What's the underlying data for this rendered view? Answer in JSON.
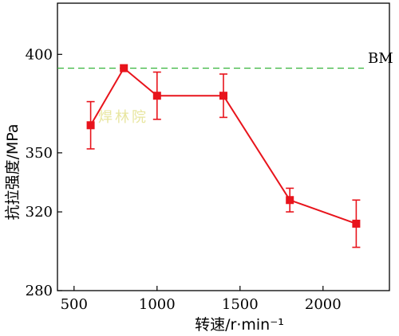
{
  "chart_data": {
    "type": "line",
    "xlabel": "转速/r·min⁻¹",
    "ylabel": "抗拉强度/MPa",
    "xlim": [
      400,
      2400
    ],
    "ylim": [
      280,
      426
    ],
    "x_ticks": [
      500,
      1000,
      1500,
      2000
    ],
    "y_ticks": [
      280,
      320,
      350,
      400
    ],
    "grid": false,
    "series": [
      {
        "x": [
          600,
          800,
          1000,
          1400,
          1800,
          2200
        ],
        "y": [
          364,
          393,
          379,
          379,
          326,
          314
        ],
        "error": [
          12,
          0,
          12,
          11,
          6,
          12
        ],
        "color": "#e8141c",
        "marker": "square"
      }
    ],
    "reference_line": {
      "label": "BM",
      "y": 393,
      "color": "#36b43a",
      "style": "dashed"
    },
    "watermark": "焊林院"
  }
}
